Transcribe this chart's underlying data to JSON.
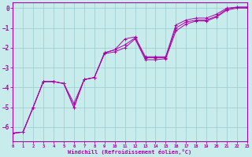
{
  "xlabel": "Windchill (Refroidissement éolien,°C)",
  "bg_color": "#c8ecec",
  "line_color": "#aa00aa",
  "grid_color": "#99cccc",
  "xlim": [
    0,
    23
  ],
  "ylim": [
    -6.7,
    0.3
  ],
  "xticks": [
    0,
    1,
    2,
    3,
    4,
    5,
    6,
    7,
    8,
    9,
    10,
    11,
    12,
    13,
    14,
    15,
    16,
    17,
    18,
    19,
    20,
    21,
    22,
    23
  ],
  "yticks": [
    0,
    -1,
    -2,
    -3,
    -4,
    -5,
    -6
  ],
  "x": [
    0,
    1,
    2,
    3,
    4,
    5,
    6,
    7,
    8,
    9,
    10,
    11,
    12,
    13,
    14,
    15,
    16,
    17,
    18,
    19,
    20,
    21,
    22,
    23
  ],
  "line1": [
    -6.3,
    -6.25,
    -5.0,
    -3.7,
    -3.7,
    -3.8,
    -4.8,
    -3.6,
    -3.5,
    -2.25,
    -2.1,
    -1.55,
    -1.45,
    -2.45,
    -2.45,
    -2.45,
    -0.85,
    -0.6,
    -0.5,
    -0.5,
    -0.3,
    0.0,
    0.05,
    0.05
  ],
  "line2": [
    -6.3,
    -6.25,
    -5.0,
    -3.7,
    -3.7,
    -3.8,
    -5.0,
    -3.6,
    -3.5,
    -2.25,
    -2.1,
    -1.85,
    -1.5,
    -2.5,
    -2.5,
    -2.5,
    -1.0,
    -0.7,
    -0.6,
    -0.6,
    -0.4,
    -0.05,
    0.05,
    0.05
  ],
  "line3": [
    -6.3,
    -6.25,
    -5.0,
    -3.7,
    -3.7,
    -3.8,
    -5.0,
    -3.6,
    -3.5,
    -2.3,
    -2.2,
    -2.0,
    -1.55,
    -2.6,
    -2.6,
    -2.55,
    -1.15,
    -0.8,
    -0.65,
    -0.65,
    -0.45,
    -0.1,
    0.0,
    0.0
  ]
}
